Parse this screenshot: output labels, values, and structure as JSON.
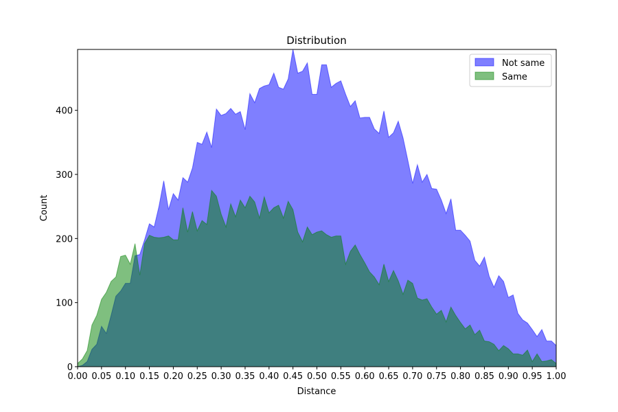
{
  "chart_data": {
    "type": "area",
    "title": "Distribution",
    "xlabel": "Distance",
    "ylabel": "Count",
    "xlim": [
      0,
      1
    ],
    "ylim": [
      0,
      495
    ],
    "x_ticks": [
      "0.00",
      "0.05",
      "0.10",
      "0.15",
      "0.20",
      "0.25",
      "0.30",
      "0.35",
      "0.40",
      "0.45",
      "0.50",
      "0.55",
      "0.60",
      "0.65",
      "0.70",
      "0.75",
      "0.80",
      "0.85",
      "0.90",
      "0.95",
      "1.00"
    ],
    "y_ticks": [
      "0",
      "100",
      "200",
      "300",
      "400"
    ],
    "legend_position": "upper-right",
    "grid": false,
    "series": [
      {
        "name": "Not same",
        "color": "#0000ff",
        "alpha": 0.5,
        "x": [
          0.0,
          0.01,
          0.02,
          0.03,
          0.04,
          0.05,
          0.06,
          0.07,
          0.08,
          0.09,
          0.1,
          0.11,
          0.12,
          0.13,
          0.14,
          0.15,
          0.16,
          0.17,
          0.18,
          0.19,
          0.2,
          0.21,
          0.22,
          0.23,
          0.24,
          0.25,
          0.26,
          0.27,
          0.28,
          0.29,
          0.3,
          0.31,
          0.32,
          0.33,
          0.34,
          0.35,
          0.36,
          0.37,
          0.38,
          0.39,
          0.4,
          0.41,
          0.42,
          0.43,
          0.44,
          0.45,
          0.46,
          0.47,
          0.48,
          0.49,
          0.5,
          0.51,
          0.52,
          0.53,
          0.54,
          0.55,
          0.56,
          0.57,
          0.58,
          0.59,
          0.6,
          0.61,
          0.62,
          0.63,
          0.64,
          0.65,
          0.66,
          0.67,
          0.68,
          0.69,
          0.7,
          0.71,
          0.72,
          0.73,
          0.74,
          0.75,
          0.76,
          0.77,
          0.78,
          0.79,
          0.8,
          0.81,
          0.82,
          0.83,
          0.84,
          0.85,
          0.86,
          0.87,
          0.88,
          0.89,
          0.9,
          0.91,
          0.92,
          0.93,
          0.94,
          0.95,
          0.96,
          0.97,
          0.98,
          0.99,
          1.0
        ],
        "values": [
          0,
          2,
          8,
          27,
          35,
          63,
          52,
          80,
          110,
          118,
          130,
          130,
          173,
          175,
          198,
          223,
          218,
          250,
          290,
          245,
          270,
          260,
          295,
          288,
          310,
          350,
          347,
          366,
          342,
          402,
          392,
          395,
          403,
          394,
          398,
          370,
          426,
          412,
          434,
          438,
          440,
          458,
          436,
          433,
          449,
          495,
          458,
          461,
          474,
          425,
          425,
          471,
          471,
          436,
          442,
          446,
          425,
          406,
          415,
          388,
          389,
          389,
          371,
          364,
          399,
          358,
          365,
          383,
          357,
          322,
          286,
          315,
          288,
          300,
          278,
          277,
          260,
          239,
          262,
          213,
          213,
          205,
          196,
          166,
          157,
          171,
          141,
          124,
          142,
          133,
          108,
          112,
          83,
          73,
          68,
          58,
          47,
          58,
          40,
          40,
          33
        ]
      },
      {
        "name": "Same",
        "color": "#008000",
        "alpha": 0.5,
        "x": [
          0.0,
          0.01,
          0.02,
          0.03,
          0.04,
          0.05,
          0.06,
          0.07,
          0.08,
          0.09,
          0.1,
          0.11,
          0.12,
          0.13,
          0.14,
          0.15,
          0.16,
          0.17,
          0.18,
          0.19,
          0.2,
          0.21,
          0.22,
          0.23,
          0.24,
          0.25,
          0.26,
          0.27,
          0.28,
          0.29,
          0.3,
          0.31,
          0.32,
          0.33,
          0.34,
          0.35,
          0.36,
          0.37,
          0.38,
          0.39,
          0.4,
          0.41,
          0.42,
          0.43,
          0.44,
          0.45,
          0.46,
          0.47,
          0.48,
          0.49,
          0.5,
          0.51,
          0.52,
          0.53,
          0.54,
          0.55,
          0.56,
          0.57,
          0.58,
          0.59,
          0.6,
          0.61,
          0.62,
          0.63,
          0.64,
          0.65,
          0.66,
          0.67,
          0.68,
          0.69,
          0.7,
          0.71,
          0.72,
          0.73,
          0.74,
          0.75,
          0.76,
          0.77,
          0.78,
          0.79,
          0.8,
          0.81,
          0.82,
          0.83,
          0.84,
          0.85,
          0.86,
          0.87,
          0.88,
          0.89,
          0.9,
          0.91,
          0.92,
          0.93,
          0.94,
          0.95,
          0.96,
          0.97,
          0.98,
          0.99,
          1.0
        ],
        "values": [
          5,
          12,
          25,
          65,
          80,
          105,
          116,
          133,
          140,
          172,
          174,
          160,
          192,
          143,
          192,
          205,
          202,
          201,
          202,
          204,
          198,
          198,
          248,
          210,
          242,
          212,
          228,
          222,
          275,
          266,
          238,
          218,
          254,
          234,
          260,
          248,
          266,
          257,
          232,
          265,
          240,
          248,
          252,
          232,
          258,
          245,
          210,
          195,
          218,
          206,
          210,
          212,
          206,
          202,
          204,
          204,
          160,
          180,
          190,
          175,
          162,
          148,
          140,
          128,
          160,
          133,
          150,
          134,
          113,
          135,
          130,
          107,
          104,
          106,
          93,
          82,
          88,
          70,
          93,
          80,
          69,
          59,
          65,
          50,
          57,
          40,
          39,
          35,
          25,
          33,
          28,
          20,
          20,
          18,
          26,
          8,
          20,
          8,
          9,
          11,
          5
        ]
      }
    ]
  }
}
